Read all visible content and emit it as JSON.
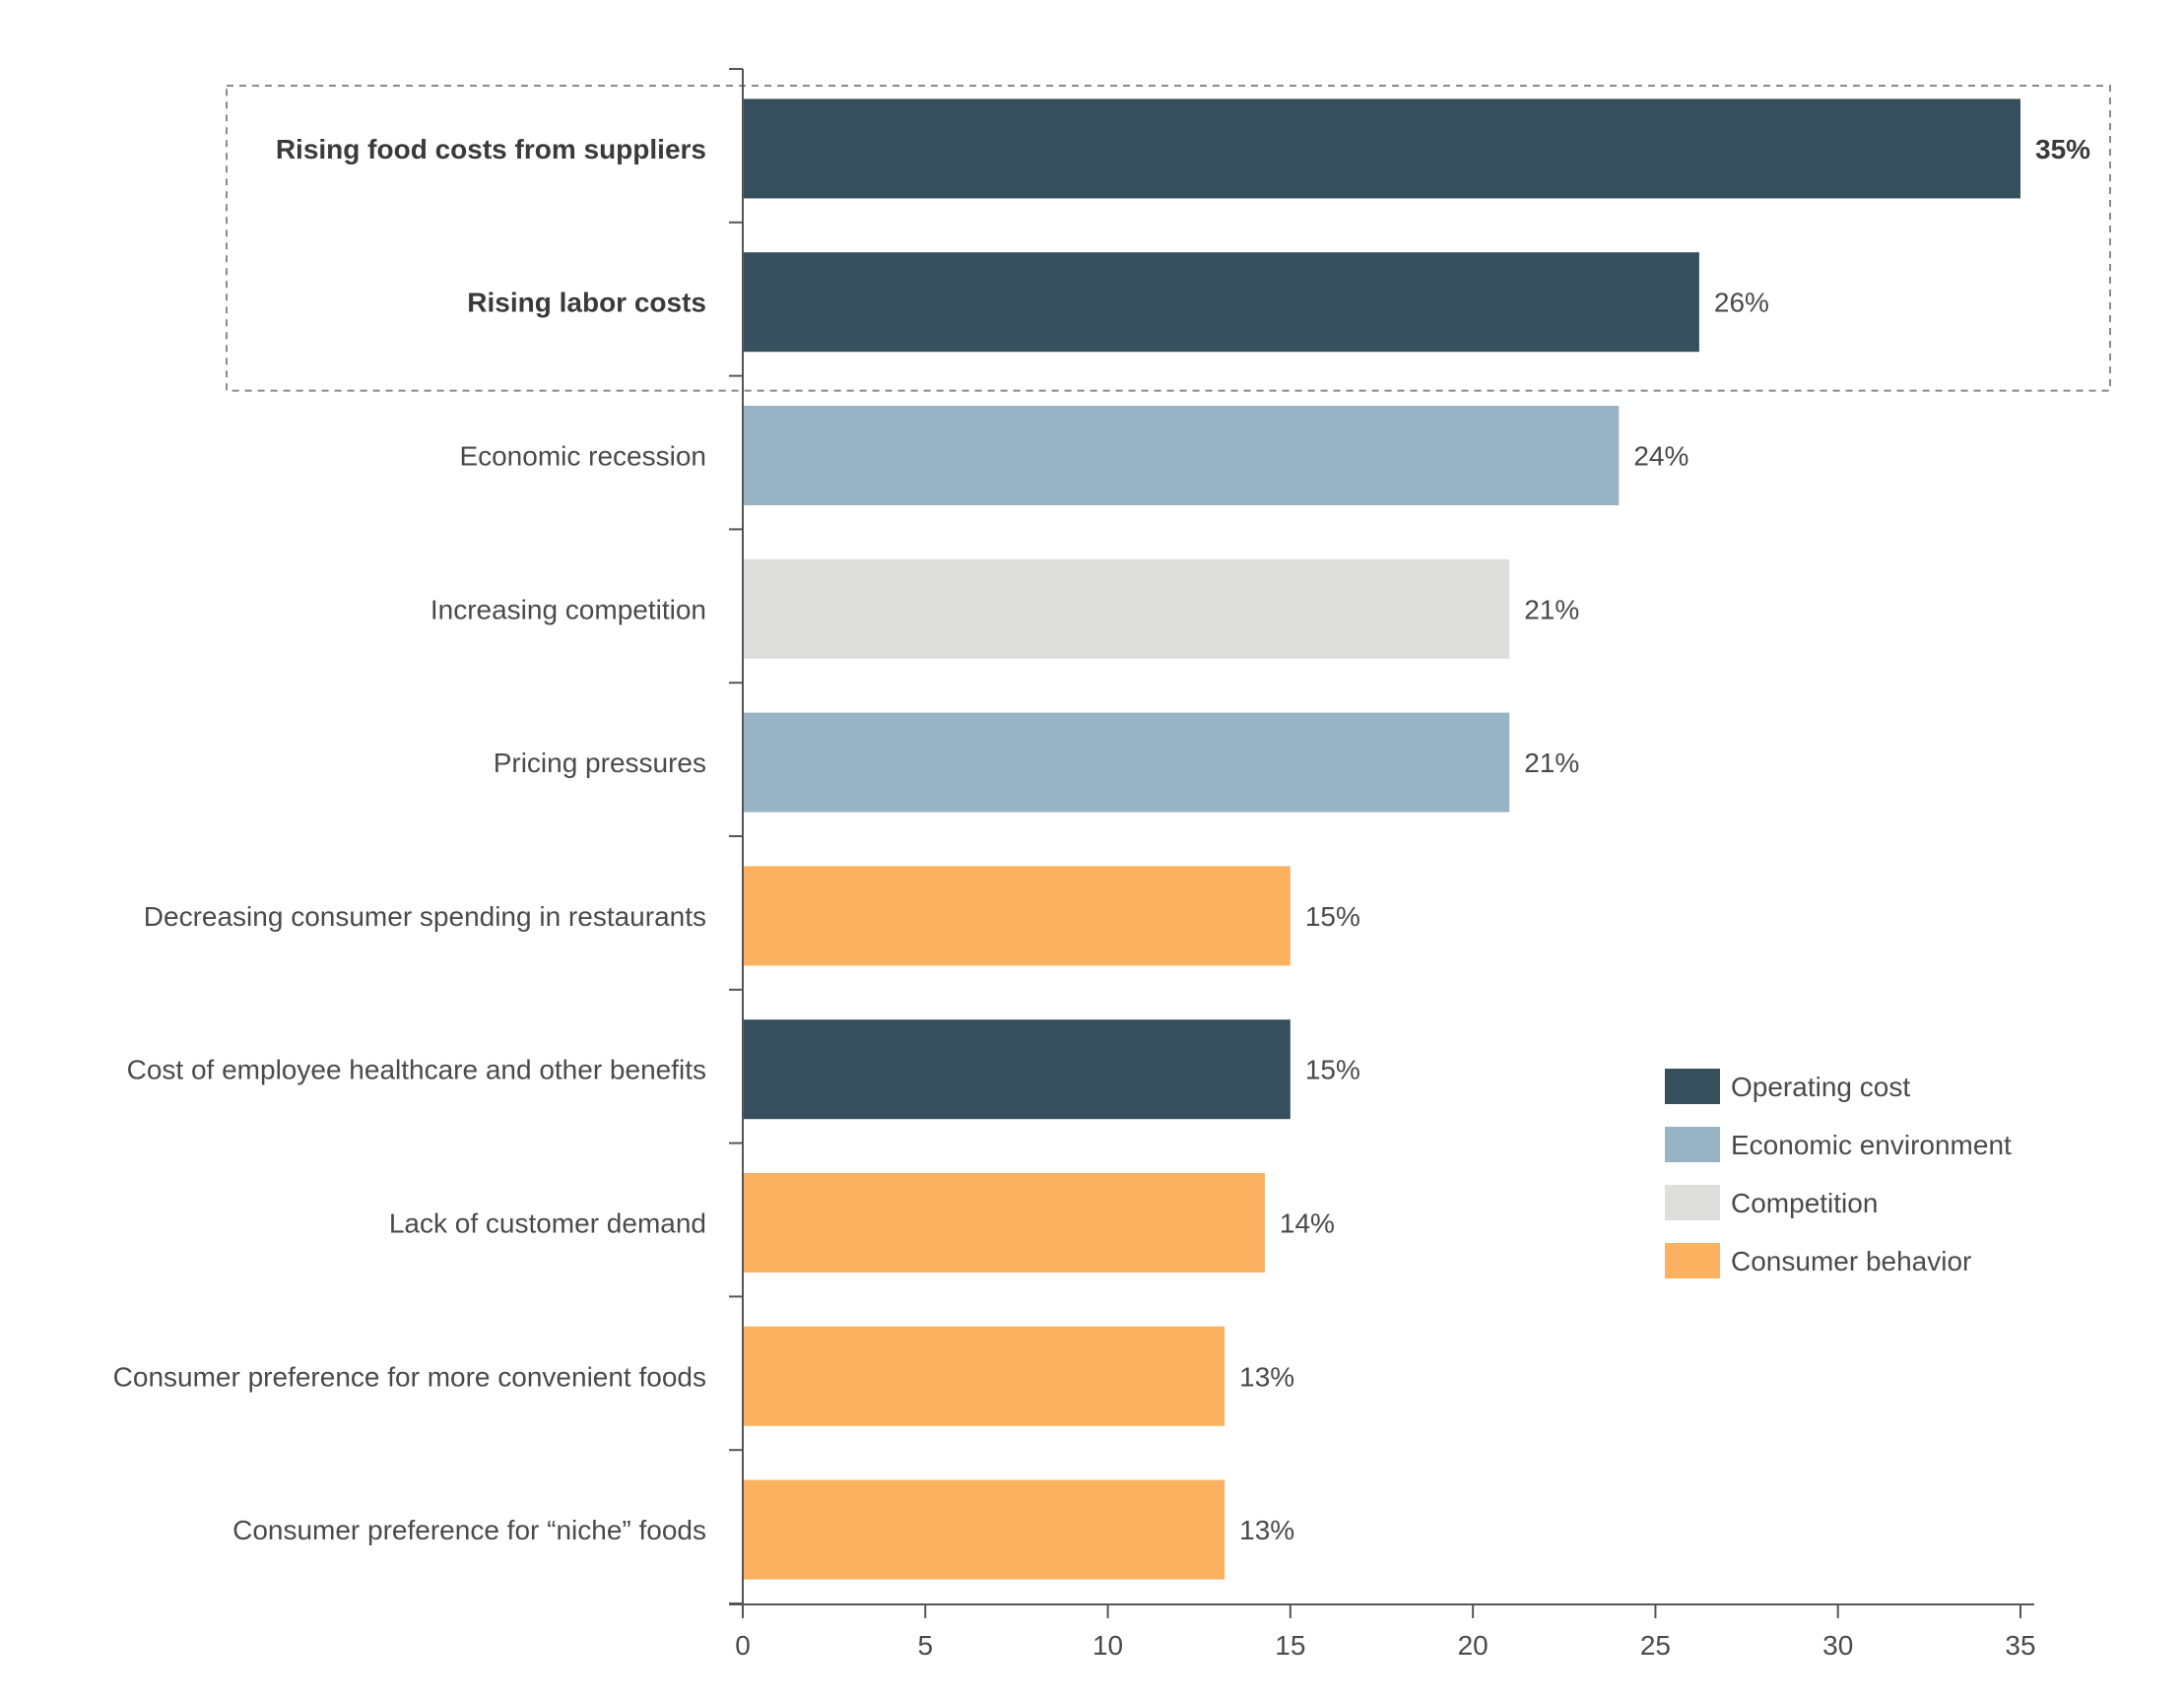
{
  "chart_data": {
    "type": "bar",
    "orientation": "horizontal",
    "categories": [
      "Rising food costs from suppliers",
      "Rising labor costs",
      "Economic recession",
      "Increasing competition",
      "Pricing pressures",
      "Decreasing consumer spending in restaurants",
      "Cost of employee healthcare and other benefits",
      "Lack of customer demand",
      "Consumer preference for more convenient foods",
      "Consumer preference for “niche” foods"
    ],
    "values": [
      35,
      26.2,
      24,
      21,
      21,
      15,
      15,
      14.3,
      13.2,
      13.2
    ],
    "value_labels": [
      "35%",
      "26%",
      "24%",
      "21%",
      "21%",
      "15%",
      "15%",
      "14%",
      "13%",
      "13%"
    ],
    "groups": [
      "Operating cost",
      "Operating cost",
      "Economic environment",
      "Competition",
      "Economic environment",
      "Consumer behavior",
      "Operating cost",
      "Consumer behavior",
      "Consumer behavior",
      "Consumer behavior"
    ],
    "highlighted": [
      true,
      true,
      false,
      false,
      false,
      false,
      false,
      false,
      false,
      false
    ],
    "xlim": [
      0,
      35
    ],
    "xticks": [
      0,
      5,
      10,
      15,
      20,
      25,
      30,
      35
    ],
    "title": "",
    "xlabel": "",
    "ylabel": "",
    "grid": false,
    "legend": {
      "placement": "right",
      "entries": [
        {
          "name": "Operating cost",
          "color": "#364f5d"
        },
        {
          "name": "Economic environment",
          "color": "#98b3c3"
        },
        {
          "name": "Competition",
          "color": "#dededc"
        },
        {
          "name": "Consumer behavior",
          "color": "#fbb160"
        }
      ]
    }
  }
}
